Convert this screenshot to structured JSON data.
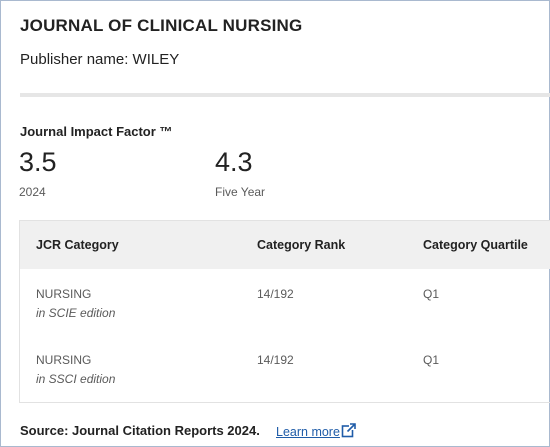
{
  "journal": {
    "title": "JOURNAL OF CLINICAL NURSING",
    "publisher": "Publisher name: WILEY"
  },
  "impact_factor": {
    "heading": "Journal Impact Factor ™",
    "metrics": [
      {
        "value": "3.5",
        "label": "2024"
      },
      {
        "value": "4.3",
        "label": "Five Year"
      }
    ]
  },
  "table": {
    "headers": [
      "JCR Category",
      "Category Rank",
      "Category Quartile"
    ],
    "rows": [
      {
        "category": "NURSING",
        "edition": "in SCIE edition",
        "rank": "14/192",
        "quartile": "Q1"
      },
      {
        "category": "NURSING",
        "edition": "in SSCI edition",
        "rank": "14/192",
        "quartile": "Q1"
      }
    ]
  },
  "footer": {
    "source": "Source: Journal Citation Reports  2024.",
    "learn_more": "Learn more",
    "link_icon": "external-link-icon"
  },
  "colors": {
    "link": "#1f5ca8",
    "header_bg": "#f0f0f0",
    "border": "#a9b9cf"
  }
}
